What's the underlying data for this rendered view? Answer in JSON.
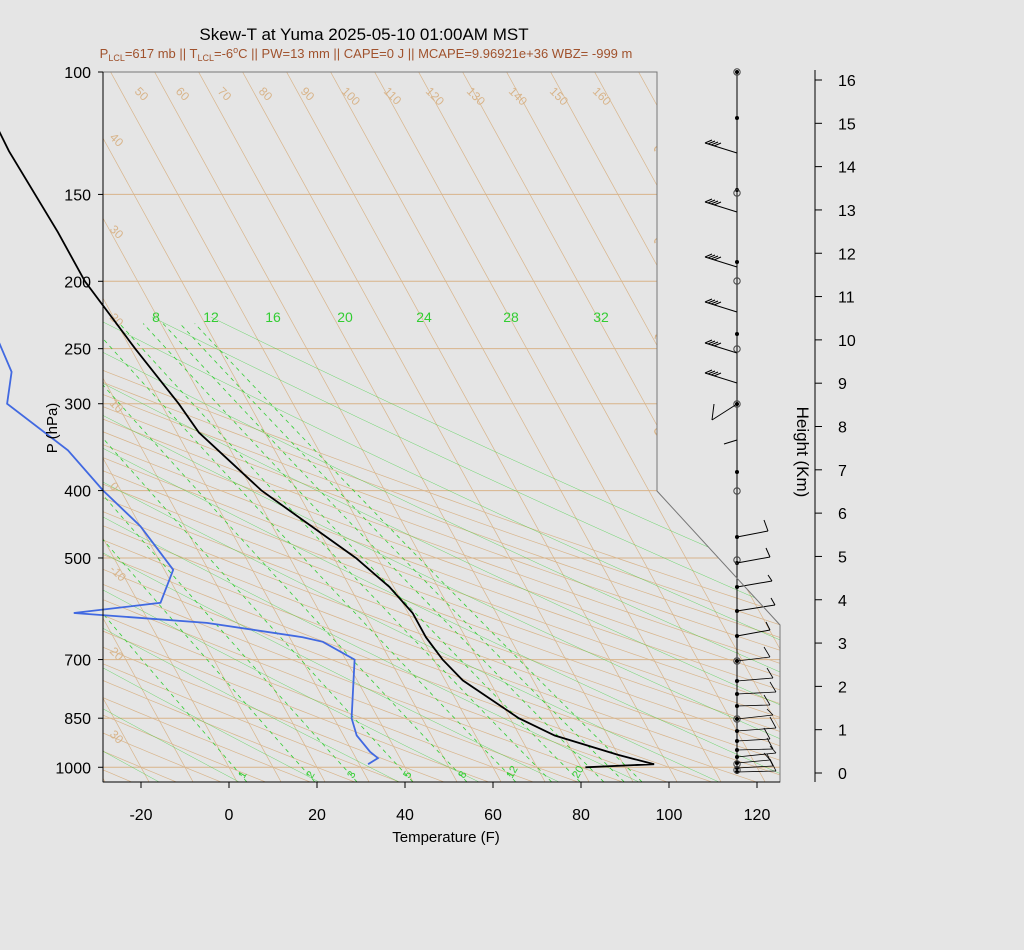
{
  "colors": {
    "background": "#e5e5e5",
    "temperature": "#000000",
    "dewpoint": "#4169e1",
    "isotherm_adiabat": "#d8b48a",
    "mixing_ratio": "#32cd32",
    "title_sub": "#a0522d"
  },
  "chart_data": {
    "type": "skew-t",
    "title": "Skew-T at Yuma 2025-05-10 01:00AM MST",
    "subtitle": {
      "p_lcl_prefix": "P",
      "p_lcl_sub": "LCL",
      "p_lcl_value": "=617 mb || ",
      "t_lcl_prefix": "T",
      "t_lcl_sub": "LCL",
      "t_lcl_value": "=-6",
      "degree_unit": "o",
      "rest": "C || PW=13 mm || CAPE=0 J || MCAPE=9.96921e+36 WBZ= -999 m"
    },
    "xlabel": "Temperature (F)",
    "ylabel": "P (hPa)",
    "y2label": "Height (Km)",
    "x_ticks": [
      "-20",
      "0",
      "20",
      "40",
      "60",
      "80",
      "100",
      "120"
    ],
    "x_tick_values": [
      -20,
      0,
      20,
      40,
      60,
      80,
      100,
      120
    ],
    "p_ticks": [
      "100",
      "150",
      "200",
      "250",
      "300",
      "400",
      "500",
      "700",
      "850",
      "1000"
    ],
    "p_tick_values": [
      100,
      150,
      200,
      250,
      300,
      400,
      500,
      700,
      850,
      1000
    ],
    "height_ticks": [
      "0",
      "1",
      "2",
      "3",
      "4",
      "5",
      "6",
      "7",
      "8",
      "9",
      "10",
      "11",
      "12",
      "13",
      "14",
      "15",
      "16"
    ],
    "height_tick_values": [
      0,
      1,
      2,
      3,
      4,
      5,
      6,
      7,
      8,
      9,
      10,
      11,
      12,
      13,
      14,
      15,
      16
    ],
    "isotherm_labels_top": [
      "50",
      "60",
      "70",
      "80",
      "90",
      "100",
      "110",
      "120",
      "130",
      "140",
      "150",
      "160"
    ],
    "isotherm_labels_left": [
      "40",
      "30",
      "20",
      "10",
      "0",
      "-10",
      "20",
      "30"
    ],
    "isotherm_labels_right": [
      "30",
      "20",
      "10",
      "0",
      "10",
      "20",
      "30",
      "40"
    ],
    "mixing_ratio_top_labels": [
      "8",
      "12",
      "16",
      "20",
      "24",
      "28",
      "32"
    ],
    "mixing_ratio_bottom_labels": [
      "1",
      "2",
      "3",
      "5",
      "8",
      "12",
      "20"
    ],
    "temperature_profile_F": [
      {
        "p": 1000,
        "t": 81
      },
      {
        "p": 990,
        "t": 97
      },
      {
        "p": 960,
        "t": 90
      },
      {
        "p": 900,
        "t": 78
      },
      {
        "p": 850,
        "t": 72
      },
      {
        "p": 750,
        "t": 64
      },
      {
        "p": 700,
        "t": 62
      },
      {
        "p": 650,
        "t": 61
      },
      {
        "p": 600,
        "t": 61
      },
      {
        "p": 550,
        "t": 59
      },
      {
        "p": 500,
        "t": 55
      },
      {
        "p": 400,
        "t": 42
      },
      {
        "p": 330,
        "t": 35
      },
      {
        "p": 300,
        "t": 34
      },
      {
        "p": 250,
        "t": 31
      },
      {
        "p": 200,
        "t": 28
      },
      {
        "p": 170,
        "t": 28
      },
      {
        "p": 130,
        "t": 27
      },
      {
        "p": 100,
        "t": 28
      }
    ],
    "dewpoint_profile_F": [
      {
        "p": 990,
        "t": 32
      },
      {
        "p": 970,
        "t": 35
      },
      {
        "p": 950,
        "t": 34
      },
      {
        "p": 900,
        "t": 33
      },
      {
        "p": 850,
        "t": 34
      },
      {
        "p": 700,
        "t": 42
      },
      {
        "p": 660,
        "t": 37
      },
      {
        "p": 650,
        "t": 33
      },
      {
        "p": 620,
        "t": 13
      },
      {
        "p": 600,
        "t": -16
      },
      {
        "p": 580,
        "t": 5
      },
      {
        "p": 520,
        "t": 12
      },
      {
        "p": 450,
        "t": 10
      },
      {
        "p": 400,
        "t": 6
      },
      {
        "p": 350,
        "t": 3
      },
      {
        "p": 300,
        "t": -5
      },
      {
        "p": 270,
        "t": 0
      },
      {
        "p": 240,
        "t": 1
      },
      {
        "p": 200,
        "t": -2
      },
      {
        "p": 170,
        "t": -2
      },
      {
        "p": 140,
        "t": 3
      },
      {
        "p": 100,
        "t": 10
      }
    ],
    "wind_height_km": [
      0,
      0.1,
      0.2,
      0.4,
      0.7,
      0.9,
      1.2,
      1.4,
      1.7,
      2,
      2.3,
      2.7,
      3,
      3.5,
      4,
      4.5,
      5,
      5.5,
      6,
      7.5,
      8,
      9,
      10,
      11,
      12,
      13,
      14
    ]
  }
}
